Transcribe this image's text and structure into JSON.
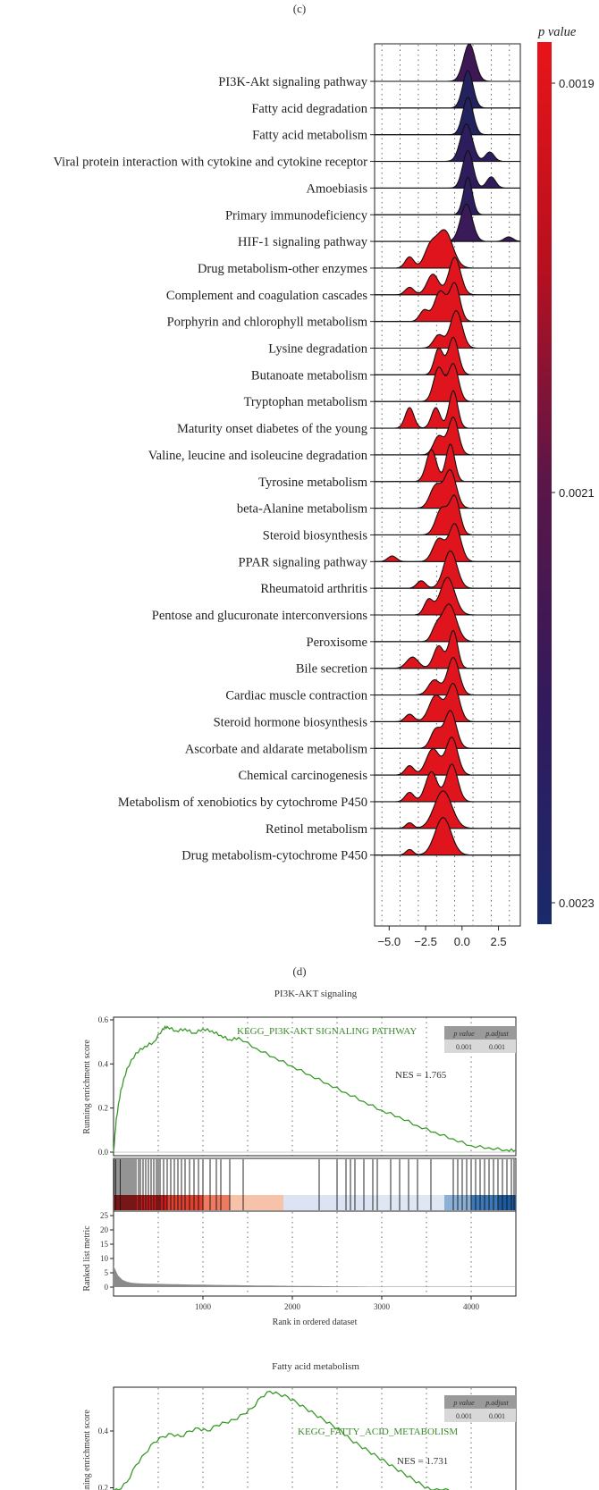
{
  "captions": {
    "c": "(c)",
    "d": "(d)"
  },
  "colors": {
    "high": "#e8141a",
    "mid": "#3b1a5a",
    "low": "#1e2a6e",
    "gsea_line": "#3a9a2a"
  },
  "chart_data": [
    {
      "type": "ridgeline",
      "legend_title": "p value",
      "legend_ticks": [
        "0.0019",
        "0.0021",
        "0.0023"
      ],
      "x_ticks": [
        "−5.0",
        "−2.5",
        "0.0",
        "2.5"
      ],
      "xlim": [
        -6,
        4
      ],
      "categories": [
        {
          "label": "PI3K-Akt signaling pathway",
          "color": "#3e1855",
          "peaks": [
            [
              0.5,
              0.4,
              1.0
            ]
          ]
        },
        {
          "label": "Fatty acid degradation",
          "color": "#24215f",
          "peaks": [
            [
              0.4,
              0.35,
              1.0
            ]
          ]
        },
        {
          "label": "Fatty acid metabolism",
          "color": "#22225f",
          "peaks": [
            [
              0.4,
              0.35,
              1.0
            ]
          ]
        },
        {
          "label": "Viral protein interaction with cytokine and cytokine receptor",
          "color": "#2e1d5e",
          "peaks": [
            [
              0.3,
              0.4,
              1.0
            ],
            [
              1.9,
              0.3,
              0.25
            ]
          ]
        },
        {
          "label": "Amoebiasis",
          "color": "#301c5c",
          "peaks": [
            [
              0.4,
              0.35,
              1.0
            ],
            [
              2.0,
              0.3,
              0.3
            ]
          ]
        },
        {
          "label": "Primary immunodeficiency",
          "color": "#2c1e5e",
          "peaks": [
            [
              0.4,
              0.3,
              1.0
            ]
          ]
        },
        {
          "label": "HIF-1 signaling pathway",
          "color": "#3a1a58",
          "peaks": [
            [
              0.3,
              0.4,
              1.0
            ],
            [
              3.2,
              0.3,
              0.12
            ]
          ]
        },
        {
          "label": "Drug metabolism-other enzymes",
          "color": "#e0141c",
          "peaks": [
            [
              -1.2,
              0.55,
              1.0
            ],
            [
              -3.6,
              0.3,
              0.3
            ],
            [
              -2.2,
              0.4,
              0.5
            ]
          ]
        },
        {
          "label": "Complement and coagulation cascades",
          "color": "#e0141c",
          "peaks": [
            [
              -0.5,
              0.4,
              1.0
            ],
            [
              -2.0,
              0.4,
              0.55
            ],
            [
              -3.6,
              0.3,
              0.2
            ]
          ]
        },
        {
          "label": "Porphyrin and chlorophyll metabolism",
          "color": "#e0141c",
          "peaks": [
            [
              -0.5,
              0.35,
              1.0
            ],
            [
              -1.5,
              0.4,
              0.8
            ],
            [
              -2.6,
              0.3,
              0.3
            ]
          ]
        },
        {
          "label": "Lysine degradation",
          "color": "#e0141c",
          "peaks": [
            [
              -0.4,
              0.4,
              1.0
            ],
            [
              -1.6,
              0.35,
              0.35
            ]
          ]
        },
        {
          "label": "Butanoate metabolism",
          "color": "#e0141c",
          "peaks": [
            [
              -0.6,
              0.35,
              1.0
            ],
            [
              -1.6,
              0.3,
              0.7
            ]
          ]
        },
        {
          "label": "Tryptophan metabolism",
          "color": "#e0141c",
          "peaks": [
            [
              -0.6,
              0.35,
              1.0
            ],
            [
              -1.6,
              0.35,
              0.9
            ]
          ]
        },
        {
          "label": "Maturity onset diabetes of the young",
          "color": "#e0141c",
          "peaks": [
            [
              -0.6,
              0.3,
              1.0
            ],
            [
              -1.8,
              0.3,
              0.55
            ],
            [
              -3.6,
              0.3,
              0.55
            ]
          ]
        },
        {
          "label": "Valine, leucine and isoleucine degradation",
          "color": "#e0141c",
          "peaks": [
            [
              -0.6,
              0.35,
              1.0
            ],
            [
              -1.6,
              0.35,
              0.5
            ]
          ]
        },
        {
          "label": "Tyrosine metabolism",
          "color": "#e0141c",
          "peaks": [
            [
              -0.8,
              0.3,
              1.0
            ],
            [
              -2.1,
              0.35,
              0.85
            ]
          ]
        },
        {
          "label": "beta-Alanine metabolism",
          "color": "#e0141c",
          "peaks": [
            [
              -0.8,
              0.4,
              1.0
            ],
            [
              -1.8,
              0.4,
              0.6
            ]
          ]
        },
        {
          "label": "Steroid biosynthesis",
          "color": "#e0141c",
          "peaks": [
            [
              -0.5,
              0.35,
              1.0
            ],
            [
              -1.4,
              0.4,
              0.7
            ]
          ]
        },
        {
          "label": "PPAR signaling pathway",
          "color": "#e0141c",
          "peaks": [
            [
              -0.5,
              0.4,
              1.0
            ],
            [
              -1.6,
              0.4,
              0.6
            ],
            [
              -4.8,
              0.3,
              0.15
            ]
          ]
        },
        {
          "label": "Rheumatoid arthritis",
          "color": "#e0141c",
          "peaks": [
            [
              -0.8,
              0.45,
              1.0
            ],
            [
              -2.8,
              0.3,
              0.2
            ]
          ]
        },
        {
          "label": "Pentose and glucuronate interconversions",
          "color": "#e0141c",
          "peaks": [
            [
              -1.0,
              0.5,
              1.0
            ],
            [
              -2.3,
              0.3,
              0.4
            ]
          ]
        },
        {
          "label": "Peroxisome",
          "color": "#e0141c",
          "peaks": [
            [
              -0.9,
              0.5,
              1.0
            ],
            [
              -1.8,
              0.3,
              0.3
            ]
          ]
        },
        {
          "label": "Bile secretion",
          "color": "#e0141c",
          "peaks": [
            [
              -0.6,
              0.3,
              1.0
            ],
            [
              -1.6,
              0.35,
              0.6
            ],
            [
              -3.4,
              0.4,
              0.3
            ]
          ]
        },
        {
          "label": "Cardiac muscle contraction",
          "color": "#e0141c",
          "peaks": [
            [
              -0.6,
              0.4,
              1.0
            ],
            [
              -1.9,
              0.4,
              0.4
            ]
          ]
        },
        {
          "label": "Steroid hormone biosynthesis",
          "color": "#e0141c",
          "peaks": [
            [
              -0.6,
              0.4,
              1.0
            ],
            [
              -1.8,
              0.45,
              0.7
            ],
            [
              -3.6,
              0.3,
              0.2
            ]
          ]
        },
        {
          "label": "Ascorbate and aldarate metabolism",
          "color": "#e0141c",
          "peaks": [
            [
              -0.8,
              0.4,
              1.0
            ],
            [
              -1.8,
              0.35,
              0.5
            ]
          ]
        },
        {
          "label": "Chemical carcinogenesis",
          "color": "#e0141c",
          "peaks": [
            [
              -0.7,
              0.4,
              1.0
            ],
            [
              -2.0,
              0.45,
              0.7
            ],
            [
              -3.6,
              0.3,
              0.25
            ]
          ]
        },
        {
          "label": "Metabolism of xenobiotics by cytochrome P450",
          "color": "#e0141c",
          "peaks": [
            [
              -0.7,
              0.4,
              1.0
            ],
            [
              -2.1,
              0.4,
              0.8
            ],
            [
              -3.6,
              0.3,
              0.25
            ]
          ]
        },
        {
          "label": "Retinol metabolism",
          "color": "#e0141c",
          "peaks": [
            [
              -1.3,
              0.6,
              1.0
            ],
            [
              -3.6,
              0.25,
              0.15
            ]
          ]
        },
        {
          "label": "Drug metabolism-cytochrome P450",
          "color": "#e0141c",
          "peaks": [
            [
              -1.3,
              0.55,
              1.0
            ],
            [
              -3.6,
              0.25,
              0.15
            ]
          ]
        }
      ]
    },
    {
      "type": "line",
      "title": "PI3K-AKT signaling",
      "series_name": "KEGG_PI3K-AKT SIGNALING PATHWAY",
      "ylabel": "Running enrichment score",
      "y_ticks": [
        "0.6",
        "0.4",
        "0.2",
        "0.0"
      ],
      "ylim": [
        0,
        0.6
      ],
      "xlim": [
        0,
        4500
      ],
      "x": [
        0,
        30,
        80,
        150,
        250,
        350,
        450,
        550,
        600,
        700,
        800,
        900,
        1000,
        1100,
        1200,
        1300,
        1400,
        1600,
        1800,
        2000,
        2200,
        2400,
        2600,
        2800,
        3000,
        3200,
        3400,
        3600,
        3800,
        4000,
        4200,
        4400,
        4500
      ],
      "y": [
        0,
        0.15,
        0.28,
        0.38,
        0.45,
        0.48,
        0.5,
        0.56,
        0.57,
        0.55,
        0.56,
        0.54,
        0.56,
        0.55,
        0.53,
        0.51,
        0.52,
        0.47,
        0.43,
        0.39,
        0.35,
        0.31,
        0.27,
        0.23,
        0.19,
        0.16,
        0.12,
        0.09,
        0.06,
        0.03,
        0.02,
        0.01,
        0.01
      ],
      "stats_header": [
        "p value",
        "p.adjust"
      ],
      "stats_values": [
        "0.001",
        "0.001"
      ],
      "nes": "NES = 1.765",
      "rank_ylabel": "Ranked list metric",
      "rank_y_ticks": [
        "25",
        "20",
        "15",
        "10",
        "5",
        "0"
      ],
      "rank_x_ticks": [
        "1000",
        "2000",
        "3000",
        "4000"
      ],
      "xlabel": "Rank in ordered dataset",
      "hits": [
        10,
        25,
        40,
        60,
        75,
        90,
        110,
        130,
        150,
        170,
        190,
        210,
        230,
        250,
        280,
        300,
        330,
        360,
        390,
        420,
        450,
        480,
        500,
        520,
        560,
        600,
        640,
        680,
        720,
        760,
        800,
        850,
        900,
        950,
        1000,
        1080,
        1150,
        1200,
        1300,
        1450,
        2300,
        2500,
        2600,
        2650,
        2700,
        2800,
        2900,
        2950,
        3100,
        3200,
        3300,
        3400,
        3550,
        3800,
        3850,
        3900,
        3950,
        4000,
        4050,
        4100,
        4150,
        4200,
        4250,
        4300,
        4350,
        4400,
        4450,
        4480
      ]
    },
    {
      "type": "line",
      "title": "Fatty acid metabolism",
      "series_name": "KEGG_FATTY_ACID_METABOLISM",
      "ylabel": "Running enrichment score",
      "y_ticks": [
        "0.4",
        "0.2"
      ],
      "ylim": [
        0,
        0.6
      ],
      "xlim": [
        0,
        4500
      ],
      "x": [
        0,
        50,
        150,
        250,
        350,
        450,
        550,
        650,
        750,
        850,
        950,
        1050,
        1150,
        1250,
        1350,
        1450,
        1550,
        1650,
        1750,
        1850,
        1950,
        2050,
        2150,
        2250,
        2350,
        2450,
        2550,
        2650,
        2750,
        2850,
        2950,
        3050,
        3150,
        3250,
        3350,
        3450,
        3550,
        3650,
        3750
      ],
      "y": [
        0,
        0.15,
        0.22,
        0.28,
        0.32,
        0.36,
        0.38,
        0.39,
        0.38,
        0.4,
        0.41,
        0.4,
        0.42,
        0.43,
        0.44,
        0.46,
        0.48,
        0.52,
        0.54,
        0.53,
        0.52,
        0.5,
        0.48,
        0.46,
        0.44,
        0.42,
        0.4,
        0.37,
        0.35,
        0.33,
        0.31,
        0.29,
        0.27,
        0.25,
        0.23,
        0.21,
        0.19,
        0.16,
        0.12
      ],
      "stats_header": [
        "p value",
        "p.adjust"
      ],
      "stats_values": [
        "0.001",
        "0.001"
      ],
      "nes": "NES = 1.731"
    }
  ]
}
